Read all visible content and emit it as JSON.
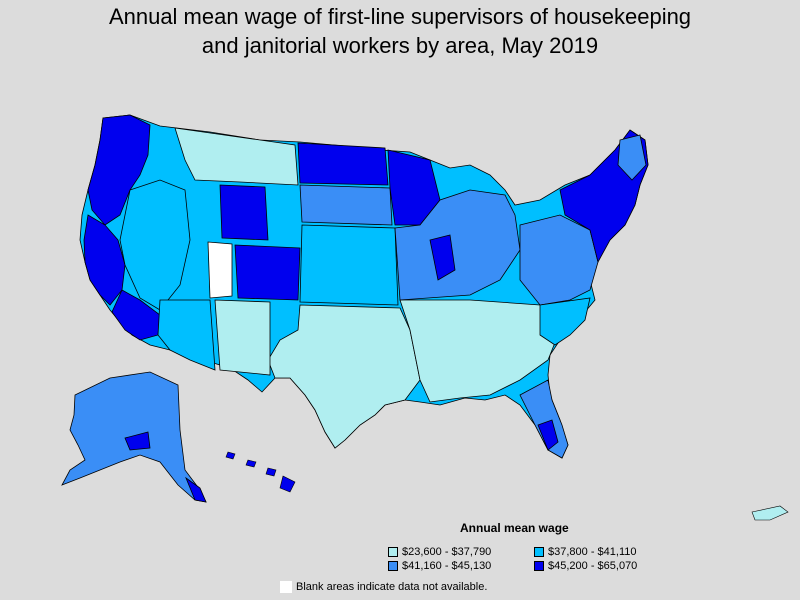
{
  "title_line1": "Annual mean wage of first-line supervisors of housekeeping",
  "title_line2": "and janitorial workers by area, May 2019",
  "legend": {
    "title": "Annual mean wage",
    "items": [
      {
        "label": "$23,600 - $37,790",
        "color": "#b0eef0"
      },
      {
        "label": "$37,800 - $41,110",
        "color": "#00bfff"
      },
      {
        "label": "$41,160 - $45,130",
        "color": "#3a8ef6"
      },
      {
        "label": "$45,200 - $65,070",
        "color": "#0000ee"
      }
    ]
  },
  "note": "Blank areas indicate data not available.",
  "colors": {
    "background": "#dcdcdc",
    "blank": "#ffffff",
    "border": "#000000"
  }
}
